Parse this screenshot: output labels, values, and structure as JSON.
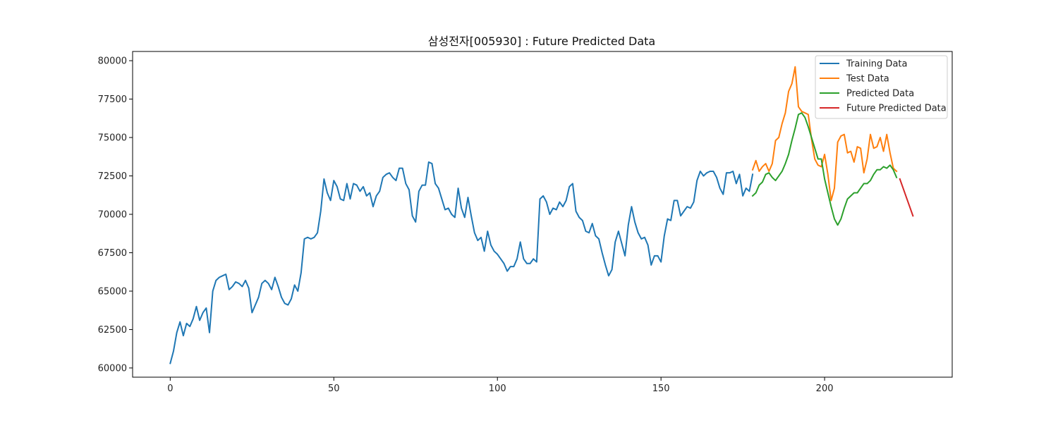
{
  "chart_data": {
    "type": "line",
    "title": "삼성전자[005930] : Future Predicted Data",
    "xlabel": "",
    "ylabel": "",
    "xlim": [
      -11.5,
      239
    ],
    "ylim": [
      59400,
      80600
    ],
    "xticks": [
      0,
      50,
      100,
      150,
      200
    ],
    "yticks": [
      60000,
      62500,
      65000,
      67500,
      70000,
      72500,
      75000,
      77500,
      80000
    ],
    "grid": false,
    "legend_position": "top-right",
    "series": [
      {
        "name": "Training Data",
        "color": "#1f77b4",
        "x_start": 0,
        "values": [
          60300,
          61100,
          62300,
          63000,
          62100,
          62900,
          62700,
          63200,
          64000,
          63100,
          63600,
          63900,
          62300,
          65000,
          65700,
          65900,
          66000,
          66100,
          65100,
          65300,
          65600,
          65500,
          65300,
          65700,
          65200,
          63600,
          64100,
          64600,
          65500,
          65700,
          65500,
          65100,
          65900,
          65300,
          64600,
          64200,
          64100,
          64500,
          65400,
          65000,
          66200,
          68400,
          68500,
          68400,
          68500,
          68800,
          70200,
          72300,
          71400,
          70900,
          72200,
          71800,
          71000,
          70900,
          72000,
          71000,
          72000,
          71900,
          71500,
          71800,
          71200,
          71400,
          70500,
          71200,
          71500,
          72400,
          72600,
          72700,
          72400,
          72200,
          73000,
          73000,
          72000,
          71600,
          69900,
          69500,
          71500,
          71900,
          71900,
          73400,
          73300,
          72000,
          71700,
          71000,
          70300,
          70400,
          70000,
          69800,
          71700,
          70400,
          69800,
          71100,
          69900,
          68800,
          68300,
          68500,
          67600,
          68900,
          68000,
          67600,
          67400,
          67100,
          66800,
          66300,
          66600,
          66600,
          67100,
          68200,
          67100,
          66800,
          66800,
          67100,
          66900,
          71000,
          71200,
          70800,
          70000,
          70400,
          70300,
          70800,
          70500,
          70900,
          71800,
          72000,
          70200,
          69800,
          69600,
          68900,
          68800,
          69400,
          68600,
          68400,
          67500,
          66700,
          66000,
          66400,
          68200,
          68900,
          68100,
          67300,
          69300,
          70500,
          69500,
          68800,
          68400,
          68500,
          68000,
          66700,
          67300,
          67300,
          66900,
          68600,
          69700,
          69600,
          70900,
          70900,
          69900,
          70200,
          70500,
          70400,
          70800,
          72200,
          72800,
          72500,
          72700,
          72800,
          72800,
          72400,
          71700,
          71300,
          72700,
          72700,
          72800,
          72000,
          72600,
          71200,
          71700,
          71500,
          72600
        ]
      },
      {
        "name": "Test Data",
        "color": "#ff7f0e",
        "x_start": 178,
        "values": [
          72900,
          73500,
          72800,
          73100,
          73300,
          72800,
          73300,
          74800,
          75000,
          75900,
          76600,
          78000,
          78500,
          79600,
          77000,
          76700,
          76600,
          76500,
          74900,
          73600,
          73200,
          73100,
          73900,
          72600,
          70900,
          71700,
          74700,
          75100,
          75200,
          74000,
          74100,
          73400,
          74400,
          74300,
          72700,
          73600,
          75200,
          74300,
          74400,
          75000,
          74100,
          75200,
          74000,
          73000,
          72800
        ]
      },
      {
        "name": "Predicted Data",
        "color": "#2ca02c",
        "x_start": 178,
        "values": [
          71200,
          71400,
          71900,
          72100,
          72600,
          72700,
          72400,
          72200,
          72500,
          72800,
          73300,
          73900,
          74800,
          75600,
          76500,
          76600,
          76300,
          75700,
          75000,
          74300,
          73600,
          73600,
          72300,
          71400,
          70500,
          69700,
          69300,
          69700,
          70400,
          71000,
          71200,
          71400,
          71400,
          71700,
          72000,
          72000,
          72200,
          72600,
          72900,
          72900,
          73100,
          73000,
          73200,
          72900,
          72400
        ]
      },
      {
        "name": "Future Predicted Data",
        "color": "#d62728",
        "x_start": 223,
        "values": [
          72300,
          71700,
          71100,
          70500,
          69900
        ]
      }
    ]
  }
}
